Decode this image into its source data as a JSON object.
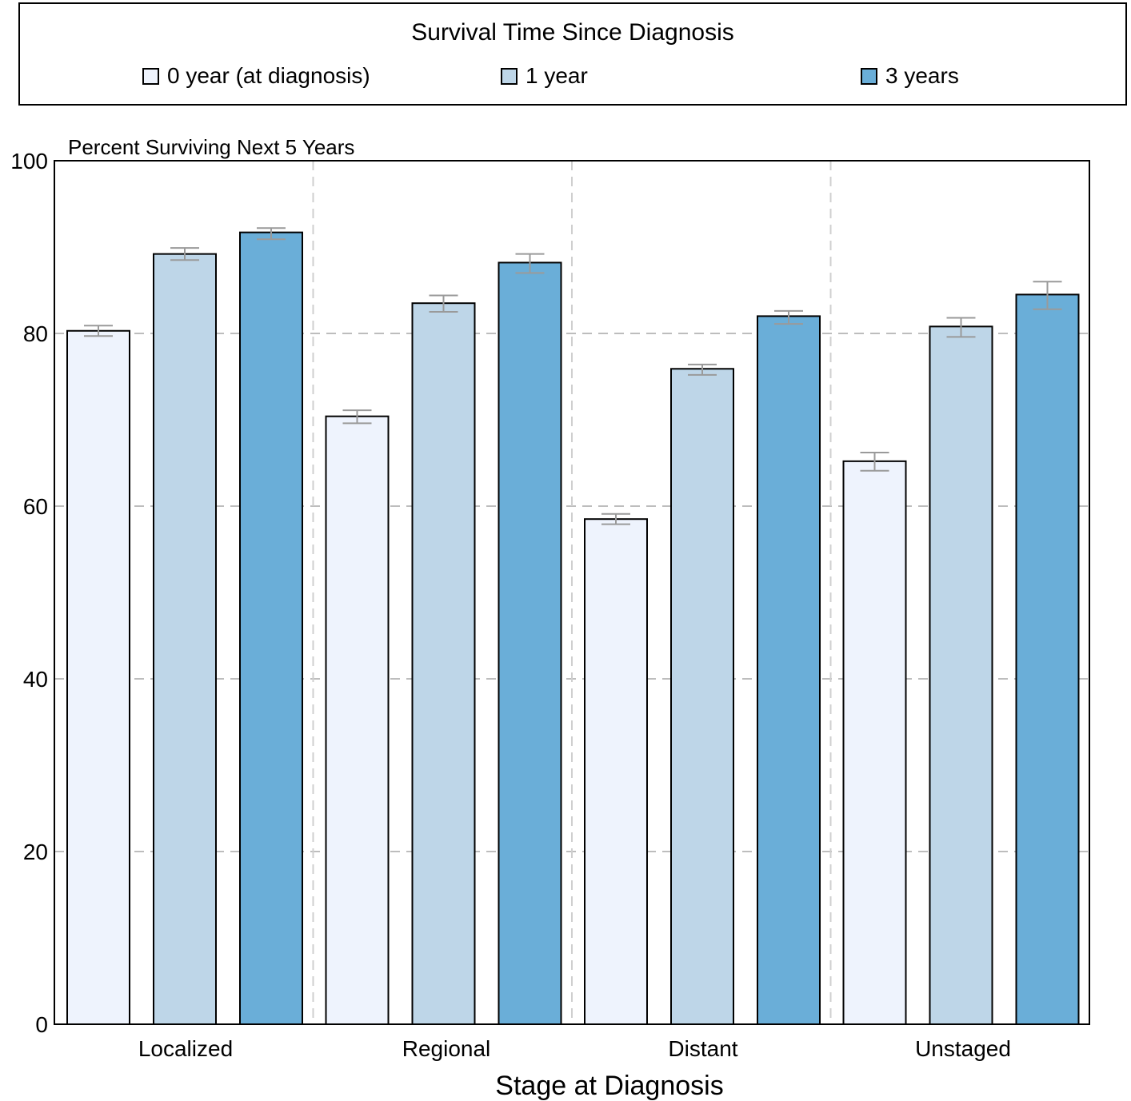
{
  "legend": {
    "title": "Survival Time Since Diagnosis",
    "items": [
      {
        "label": "0 year (at diagnosis)",
        "color": "#eef3fd"
      },
      {
        "label": "1 year",
        "color": "#bed6e8"
      },
      {
        "label": "3 years",
        "color": "#6aaed8"
      }
    ]
  },
  "chart_data": {
    "type": "bar",
    "y_caption": "Percent Surviving Next 5 Years",
    "xlabel": "Stage at Diagnosis",
    "ylim": [
      0,
      100
    ],
    "yticks": [
      0,
      20,
      40,
      60,
      80,
      100
    ],
    "grid": true,
    "legend_position": "top",
    "categories": [
      "Localized",
      "Regional",
      "Distant",
      "Unstaged"
    ],
    "series": [
      {
        "name": "0 year (at diagnosis)",
        "color": "#eef3fd",
        "values": [
          80.3,
          70.4,
          58.5,
          65.2
        ],
        "error": [
          [
            79.7,
            80.9
          ],
          [
            69.6,
            71.1
          ],
          [
            57.9,
            59.1
          ],
          [
            64.1,
            66.2
          ]
        ]
      },
      {
        "name": "1 year",
        "color": "#bed6e8",
        "values": [
          89.2,
          83.5,
          75.9,
          80.8
        ],
        "error": [
          [
            88.5,
            89.9
          ],
          [
            82.5,
            84.4
          ],
          [
            75.2,
            76.4
          ],
          [
            79.6,
            81.8
          ]
        ]
      },
      {
        "name": "3 years",
        "color": "#6aaed8",
        "values": [
          91.7,
          88.2,
          82.0,
          84.5
        ],
        "error": [
          [
            90.9,
            92.2
          ],
          [
            87.0,
            89.2
          ],
          [
            81.1,
            82.6
          ],
          [
            82.8,
            86.0
          ]
        ]
      }
    ]
  }
}
